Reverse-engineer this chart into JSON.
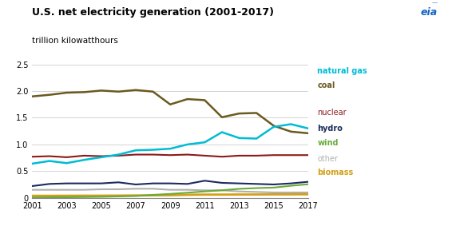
{
  "title": "U.S. net electricity generation (2001-2017)",
  "subtitle": "trillion kilowatthours",
  "years": [
    2001,
    2002,
    2003,
    2004,
    2005,
    2006,
    2007,
    2008,
    2009,
    2010,
    2011,
    2012,
    2013,
    2014,
    2015,
    2016,
    2017
  ],
  "series": {
    "coal": {
      "values": [
        1.9,
        1.93,
        1.97,
        1.98,
        2.01,
        1.99,
        2.02,
        1.99,
        1.75,
        1.85,
        1.83,
        1.51,
        1.58,
        1.59,
        1.35,
        1.24,
        1.21
      ],
      "color": "#6b5a1e",
      "linewidth": 1.8
    },
    "natural_gas": {
      "values": [
        0.64,
        0.69,
        0.65,
        0.71,
        0.76,
        0.81,
        0.89,
        0.9,
        0.92,
        1.0,
        1.04,
        1.23,
        1.12,
        1.11,
        1.33,
        1.38,
        1.3
      ],
      "color": "#00bcd4",
      "linewidth": 1.8
    },
    "nuclear": {
      "values": [
        0.77,
        0.78,
        0.76,
        0.79,
        0.78,
        0.79,
        0.81,
        0.81,
        0.8,
        0.81,
        0.79,
        0.77,
        0.79,
        0.79,
        0.8,
        0.8,
        0.8
      ],
      "color": "#8b1a1a",
      "linewidth": 1.5
    },
    "hydro": {
      "values": [
        0.22,
        0.26,
        0.27,
        0.27,
        0.27,
        0.29,
        0.25,
        0.27,
        0.27,
        0.26,
        0.32,
        0.28,
        0.27,
        0.26,
        0.25,
        0.27,
        0.3
      ],
      "color": "#1c2b5e",
      "linewidth": 1.5
    },
    "wind": {
      "values": [
        0.006,
        0.01,
        0.011,
        0.014,
        0.018,
        0.026,
        0.034,
        0.055,
        0.073,
        0.095,
        0.12,
        0.141,
        0.168,
        0.182,
        0.191,
        0.226,
        0.254
      ],
      "color": "#6aaa3a",
      "linewidth": 1.5
    },
    "other": {
      "values": [
        0.15,
        0.15,
        0.15,
        0.15,
        0.16,
        0.16,
        0.17,
        0.17,
        0.15,
        0.15,
        0.14,
        0.14,
        0.12,
        0.11,
        0.1,
        0.1,
        0.1
      ],
      "color": "#b0b0b0",
      "linewidth": 1.5
    },
    "biomass": {
      "values": [
        0.038,
        0.038,
        0.039,
        0.04,
        0.04,
        0.042,
        0.044,
        0.046,
        0.048,
        0.056,
        0.06,
        0.06,
        0.062,
        0.062,
        0.064,
        0.064,
        0.066
      ],
      "color": "#d4a017",
      "linewidth": 2.0
    }
  },
  "xlim": [
    2001,
    2017
  ],
  "ylim": [
    0,
    2.5
  ],
  "yticks": [
    0.0,
    0.5,
    1.0,
    1.5,
    2.0,
    2.5
  ],
  "xticks": [
    2001,
    2003,
    2005,
    2007,
    2009,
    2011,
    2013,
    2015,
    2017
  ],
  "bg_color": "#ffffff",
  "grid_color": "#cccccc",
  "legend_order": [
    "natural_gas",
    "coal",
    "nuclear",
    "hydro",
    "wind",
    "other",
    "biomass"
  ],
  "legend_labels": {
    "natural_gas": "natural gas",
    "coal": "coal",
    "nuclear": "nuclear",
    "hydro": "hydro",
    "wind": "wind",
    "other": "other",
    "biomass": "biomass"
  },
  "legend_colors": {
    "natural_gas": "#00bcd4",
    "coal": "#6b5a1e",
    "nuclear": "#8b1a1a",
    "hydro": "#1c2b5e",
    "wind": "#6aaa3a",
    "other": "#b0b0b0",
    "biomass": "#d4a017"
  },
  "legend_bold": {
    "natural_gas": true,
    "coal": true,
    "nuclear": false,
    "hydro": true,
    "wind": true,
    "other": false,
    "biomass": true
  },
  "eia_color": "#1565c0",
  "title_fontsize": 9,
  "subtitle_fontsize": 7.5,
  "tick_fontsize": 7
}
